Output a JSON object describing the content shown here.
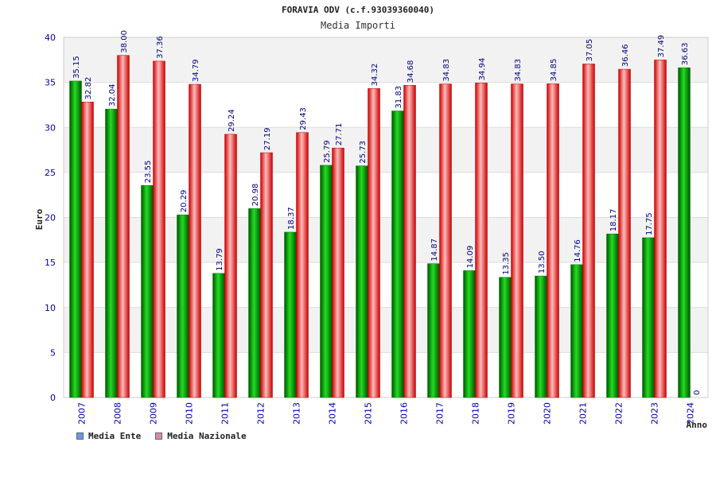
{
  "chart_data": {
    "type": "bar",
    "title": "FORAVIA ODV (c.f.93039360040)",
    "subtitle": "Media Importi",
    "xlabel": "Anno",
    "ylabel": "Euro",
    "ylim": [
      0,
      40
    ],
    "yticks": [
      0,
      5,
      10,
      15,
      20,
      25,
      30,
      35,
      40
    ],
    "grid": true,
    "legend_position": "bottom-left",
    "categories": [
      "2007",
      "2008",
      "2009",
      "2010",
      "2011",
      "2012",
      "2013",
      "2014",
      "2015",
      "2016",
      "2017",
      "2018",
      "2019",
      "2020",
      "2021",
      "2022",
      "2023",
      "2024"
    ],
    "series": [
      {
        "name": "Media Ente",
        "color": "#00aa00",
        "legend_color": "#6699ee",
        "values": [
          35.15,
          32.04,
          23.55,
          20.29,
          13.79,
          20.98,
          18.37,
          25.79,
          25.73,
          31.83,
          14.87,
          14.09,
          13.35,
          13.5,
          14.76,
          18.17,
          17.75,
          36.63
        ],
        "labels": [
          "35.15",
          "32.04",
          "23.55",
          "20.29",
          "13.79",
          "20.98",
          "18.37",
          "25.79",
          "25.73",
          "31.83",
          "14.87",
          "14.09",
          "13.35",
          "13.50",
          "14.76",
          "18.17",
          "17.75",
          "36.63"
        ]
      },
      {
        "name": "Media Nazionale",
        "color": "#ee2222",
        "legend_color": "#dd88aa",
        "values": [
          32.82,
          38.0,
          37.36,
          34.79,
          29.24,
          27.19,
          29.43,
          27.71,
          34.32,
          34.68,
          34.83,
          34.94,
          34.83,
          34.85,
          37.05,
          36.46,
          37.49,
          0
        ],
        "labels": [
          "32.82",
          "38.00",
          "37.36",
          "34.79",
          "29.24",
          "27.19",
          "29.43",
          "27.71",
          "34.32",
          "34.68",
          "34.83",
          "34.94",
          "34.83",
          "34.85",
          "37.05",
          "36.46",
          "37.49",
          "0"
        ]
      }
    ]
  },
  "colors": {
    "axis_text": "#0000aa",
    "band_light": "#f2f2f2",
    "band_white": "#ffffff",
    "label_text": "#000080"
  }
}
